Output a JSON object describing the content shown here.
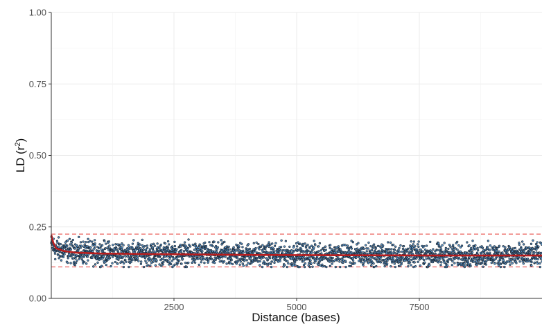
{
  "chart_data": {
    "type": "scatter",
    "xlabel": "Distance (bases)",
    "ylabel_main": "LD (r",
    "ylabel_sup": "2",
    "ylabel_close": ")",
    "xlim": [
      0,
      10000
    ],
    "ylim": [
      0,
      1
    ],
    "x_ticks": [
      2500,
      5000,
      7500
    ],
    "x_tick_labels": [
      "2500",
      "5000",
      "7500"
    ],
    "y_ticks": [
      0,
      0.25,
      0.5,
      0.75,
      1
    ],
    "y_tick_labels": [
      "0.00",
      "0.25",
      "0.50",
      "0.75",
      "1.00"
    ],
    "grid": true,
    "legend": "none",
    "series": [
      {
        "kind": "points",
        "color_fill": "#5b9bd5",
        "color_edge": "#1f2a36",
        "x_range": [
          0,
          10000
        ],
        "spread_low": 0.115,
        "spread_high": 0.21,
        "mean_profile": [
          {
            "x": 0,
            "y": 0.19
          },
          {
            "x": 100,
            "y": 0.17
          },
          {
            "x": 500,
            "y": 0.162
          },
          {
            "x": 1000,
            "y": 0.158
          },
          {
            "x": 2500,
            "y": 0.155
          },
          {
            "x": 5000,
            "y": 0.152
          },
          {
            "x": 7500,
            "y": 0.151
          },
          {
            "x": 10000,
            "y": 0.151
          }
        ]
      },
      {
        "kind": "fit-line",
        "color": "#b81d1d",
        "points": [
          {
            "x": 0,
            "y": 0.222
          },
          {
            "x": 40,
            "y": 0.195
          },
          {
            "x": 100,
            "y": 0.175
          },
          {
            "x": 250,
            "y": 0.166
          },
          {
            "x": 500,
            "y": 0.16
          },
          {
            "x": 1000,
            "y": 0.157
          },
          {
            "x": 2000,
            "y": 0.155
          },
          {
            "x": 4000,
            "y": 0.152
          },
          {
            "x": 6000,
            "y": 0.151
          },
          {
            "x": 8000,
            "y": 0.15
          },
          {
            "x": 10000,
            "y": 0.15
          }
        ]
      }
    ],
    "reference_lines": [
      {
        "y": 0.225,
        "color": "#e53935",
        "style": "dashed"
      },
      {
        "y": 0.11,
        "color": "#e53935",
        "style": "dashed"
      }
    ]
  }
}
